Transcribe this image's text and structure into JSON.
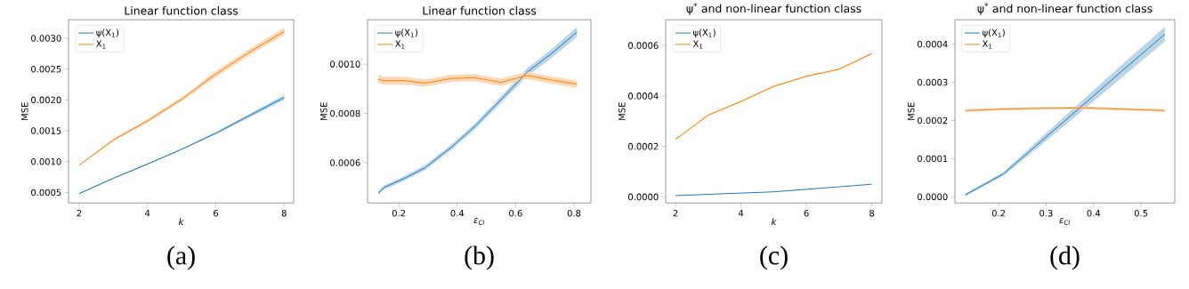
{
  "chart_data": [
    {
      "type": "line",
      "title": "Linear function class",
      "xlabel": "k",
      "ylabel": "MSE",
      "annotations": [
        "(a)"
      ],
      "x": [
        2,
        3,
        4,
        5,
        6,
        7,
        8
      ],
      "xlim": [
        1.69,
        8.28
      ],
      "ylim": [
        0.00033,
        0.0033
      ],
      "xticks": [
        2,
        4,
        6,
        8
      ],
      "yticks": [
        {
          "value": 0.0005,
          "label": "0.0005"
        },
        {
          "value": 0.001,
          "label": "0.0010"
        },
        {
          "value": 0.0015,
          "label": "0.0015"
        },
        {
          "value": 0.002,
          "label": "0.0020"
        },
        {
          "value": 0.0025,
          "label": "0.0025"
        },
        {
          "value": 0.003,
          "label": "0.0030"
        }
      ],
      "legend": "top left",
      "grid": false,
      "marker": "none",
      "line_style": "solid",
      "series": [
        {
          "name": "ψ(X$_{1}$)",
          "color": "#1f77b4",
          "values": [
            0.00048,
            0.00073,
            0.00096,
            0.0012,
            0.00146,
            0.00175,
            0.00204
          ],
          "lower": [
            0.00047,
            0.00072,
            0.00095,
            0.00119,
            0.00144,
            0.00172,
            0.002
          ],
          "upper": [
            0.00049,
            0.00074,
            0.00097,
            0.00121,
            0.00148,
            0.00178,
            0.00208
          ]
        },
        {
          "name": "X$_{1}$",
          "color": "#ff7f0e",
          "values": [
            0.00094,
            0.00135,
            0.00166,
            0.00201,
            0.00242,
            0.00278,
            0.00311
          ],
          "lower": [
            0.00093,
            0.00133,
            0.00163,
            0.00198,
            0.00237,
            0.00273,
            0.00305
          ],
          "upper": [
            0.00095,
            0.00137,
            0.00169,
            0.00204,
            0.00247,
            0.00283,
            0.00317
          ]
        }
      ]
    },
    {
      "type": "line",
      "title": "Linear function class",
      "xlabel": "ε$_{CI}$",
      "ylabel": "MSE",
      "annotations": [
        "(b)"
      ],
      "x": [
        0.13,
        0.15,
        0.22,
        0.29,
        0.38,
        0.46,
        0.55,
        0.64,
        0.72,
        0.81
      ],
      "xlim": [
        0.093,
        0.858
      ],
      "ylim": [
        0.000437,
        0.00118
      ],
      "xticks": [
        0.2,
        0.4,
        0.6,
        0.8
      ],
      "yticks": [
        {
          "value": 0.0006,
          "label": "0.0006"
        },
        {
          "value": 0.0008,
          "label": "0.0008"
        },
        {
          "value": 0.001,
          "label": "0.0010"
        }
      ],
      "legend": "top left",
      "grid": false,
      "marker": "none",
      "line_style": "solid",
      "series": [
        {
          "name": "ψ(X$_{1}$)",
          "color": "#1f77b4",
          "values": [
            0.000477,
            0.0005,
            0.000537,
            0.00058,
            0.000663,
            0.000747,
            0.000856,
            0.000968,
            0.00104,
            0.00113
          ],
          "lower": [
            0.00047,
            0.000492,
            0.000528,
            0.00057,
            0.000652,
            0.000735,
            0.000842,
            0.000952,
            0.001022,
            0.00111
          ],
          "upper": [
            0.000484,
            0.000508,
            0.000546,
            0.00059,
            0.000674,
            0.000759,
            0.00087,
            0.000984,
            0.001058,
            0.00115
          ]
        },
        {
          "name": "X$_{1}$",
          "color": "#ff7f0e",
          "values": [
            0.000938,
            0.000933,
            0.000933,
            0.000923,
            0.000942,
            0.000945,
            0.000926,
            0.000954,
            0.000936,
            0.000919
          ],
          "lower": [
            0.000922,
            0.000917,
            0.000917,
            0.000908,
            0.000927,
            0.00093,
            0.000911,
            0.000939,
            0.000921,
            0.000904
          ],
          "upper": [
            0.000954,
            0.000949,
            0.000949,
            0.000938,
            0.000957,
            0.00096,
            0.000941,
            0.000969,
            0.000951,
            0.000934
          ]
        }
      ]
    },
    {
      "type": "line",
      "title": "ψ$^{*}$ and non-linear function class",
      "xlabel": "k",
      "ylabel": "MSE",
      "annotations": [
        "(c)"
      ],
      "x": [
        2,
        3,
        4,
        5,
        6,
        7,
        8
      ],
      "xlim": [
        1.7,
        8.31
      ],
      "ylim": [
        -2.4e-05,
        0.000702
      ],
      "xticks": [
        2,
        4,
        6,
        8
      ],
      "yticks": [
        {
          "value": 0,
          "label": "0.0000"
        },
        {
          "value": 0.0002,
          "label": "0.0002"
        },
        {
          "value": 0.0004,
          "label": "0.0004"
        },
        {
          "value": 0.0006,
          "label": "0.0006"
        }
      ],
      "legend": "top left",
      "grid": false,
      "marker": "none",
      "line_style": "solid",
      "series": [
        {
          "name": "ψ(X$_{1}$)",
          "color": "#1f77b4",
          "values": [
            5e-06,
            1e-05,
            1.5e-05,
            2e-05,
            3e-05,
            4e-05,
            5e-05
          ]
        },
        {
          "name": "X$_{1}$",
          "color": "#ff7f0e",
          "values": [
            0.000228,
            0.000324,
            0.000378,
            0.000438,
            0.000478,
            0.000506,
            0.000568
          ],
          "lower": [
            0.000225,
            0.000321,
            0.000375,
            0.000435,
            0.000475,
            0.000503,
            0.000564
          ],
          "upper": [
            0.000231,
            0.000327,
            0.000381,
            0.000441,
            0.000481,
            0.000509,
            0.000572
          ]
        }
      ]
    },
    {
      "type": "line",
      "title": "ψ$^{*}$ and non-linear function class",
      "xlabel": "ε$_{CI}$",
      "ylabel": "MSE",
      "annotations": [
        "(d)"
      ],
      "x": [
        0.13,
        0.21,
        0.29,
        0.38,
        0.46,
        0.55
      ],
      "xlim": [
        0.108,
        0.571
      ],
      "ylim": [
        -1.6e-05,
        0.000464
      ],
      "xticks": [
        0.2,
        0.3,
        0.4,
        0.5
      ],
      "yticks": [
        {
          "value": 0,
          "label": "0.0000"
        },
        {
          "value": 0.0001,
          "label": "0.0001"
        },
        {
          "value": 0.0002,
          "label": "0.0002"
        },
        {
          "value": 0.0003,
          "label": "0.0003"
        },
        {
          "value": 0.0004,
          "label": "0.0004"
        }
      ],
      "legend": "top left",
      "grid": false,
      "marker": "none",
      "line_style": "solid",
      "series": [
        {
          "name": "ψ(X$_{1}$)",
          "color": "#1f77b4",
          "values": [
            5e-06,
            6e-05,
            0.000146,
            0.000243,
            0.00033,
            0.000426
          ],
          "lower": [
            2e-06,
            5.5e-05,
            0.000136,
            0.000229,
            0.000313,
            0.000407
          ],
          "upper": [
            9e-06,
            6.5e-05,
            0.000156,
            0.000257,
            0.000347,
            0.000445
          ]
        },
        {
          "name": "X$_{1}$",
          "color": "#ff7f0e",
          "values": [
            0.000226,
            0.00023,
            0.000232,
            0.000233,
            0.00023,
            0.000226
          ],
          "lower": [
            0.000223,
            0.000227,
            0.000229,
            0.00023,
            0.000227,
            0.000223
          ],
          "upper": [
            0.000229,
            0.000233,
            0.000235,
            0.000236,
            0.000233,
            0.000229
          ]
        }
      ]
    }
  ]
}
